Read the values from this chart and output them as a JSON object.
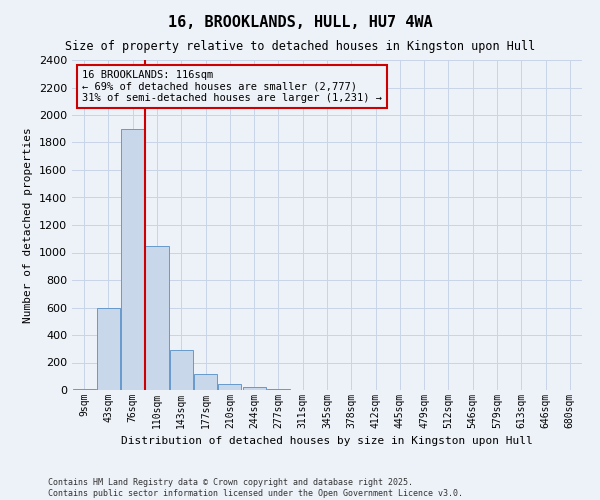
{
  "title": "16, BROOKLANDS, HULL, HU7 4WA",
  "subtitle": "Size of property relative to detached houses in Kingston upon Hull",
  "xlabel": "Distribution of detached houses by size in Kingston upon Hull",
  "ylabel": "Number of detached properties",
  "footer": "Contains HM Land Registry data © Crown copyright and database right 2025.\nContains public sector information licensed under the Open Government Licence v3.0.",
  "categories": [
    "9sqm",
    "43sqm",
    "76sqm",
    "110sqm",
    "143sqm",
    "177sqm",
    "210sqm",
    "244sqm",
    "277sqm",
    "311sqm",
    "345sqm",
    "378sqm",
    "412sqm",
    "445sqm",
    "479sqm",
    "512sqm",
    "546sqm",
    "579sqm",
    "613sqm",
    "646sqm",
    "680sqm"
  ],
  "values": [
    10,
    600,
    1900,
    1050,
    290,
    115,
    45,
    20,
    5,
    2,
    1,
    0,
    0,
    0,
    0,
    0,
    0,
    0,
    0,
    0,
    0
  ],
  "bar_color": "#c8d8ea",
  "bar_edge_color": "#6699cc",
  "grid_color": "#c8d4e8",
  "background_color": "#edf1f8",
  "property_label": "16 BROOKLANDS: 116sqm",
  "annotation_line1": "← 69% of detached houses are smaller (2,777)",
  "annotation_line2": "31% of semi-detached houses are larger (1,231) →",
  "vline_color": "#cc0000",
  "vline_x": 2.5,
  "annotation_box_color": "#cc0000",
  "ylim": [
    0,
    2400
  ],
  "yticks": [
    0,
    200,
    400,
    600,
    800,
    1000,
    1200,
    1400,
    1600,
    1800,
    2000,
    2200,
    2400
  ]
}
